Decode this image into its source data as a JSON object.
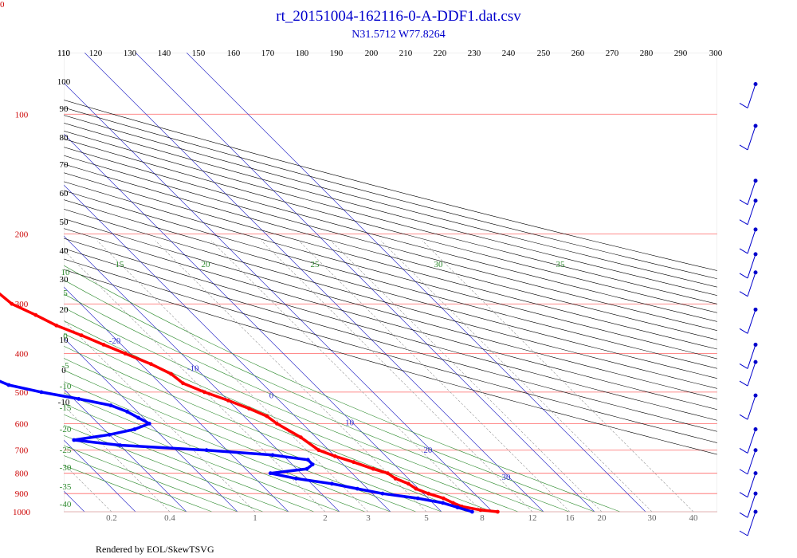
{
  "title": "rt_20151004-162116-0-A-DDF1.dat.csv",
  "subtitle": "N31.5712 W77.8264",
  "corner_label": "0",
  "footer": "Rendered by EOL/SkewTSVG",
  "colors": {
    "temperature": "#ff0000",
    "dewpoint": "#0000ff",
    "isobar": "#ff6666",
    "isotherm": "#3333cc",
    "dry_adiabat": "#000000",
    "moist_adiabat": "#2e8b2e",
    "mixing_ratio": "#999999",
    "wind": "#0000cc"
  },
  "chart_data": {
    "type": "skew-t",
    "title": "rt_20151004-162116-0-A-DDF1.dat.csv",
    "subtitle": "N31.5712 W77.8264",
    "pressure_levels": [
      "100",
      "200",
      "300",
      "400",
      "500",
      "600",
      "700",
      "800",
      "900",
      "1000"
    ],
    "theta_labels": [
      "110",
      "120",
      "130",
      "140",
      "150",
      "160",
      "170",
      "180",
      "190",
      "200",
      "210",
      "220",
      "230",
      "240",
      "250",
      "260",
      "270",
      "280",
      "290",
      "300"
    ],
    "left_labels": [
      "110",
      "100",
      "90",
      "80",
      "70",
      "60",
      "50",
      "40",
      "30",
      "20",
      "10",
      "0",
      "-10"
    ],
    "isotherm_labels": [
      "-110",
      "-100",
      "-90",
      "-80",
      "-70",
      "-60",
      "-50",
      "-40",
      "-30",
      "-20",
      "-10",
      "0",
      "10",
      "20",
      "30"
    ],
    "moist_labels": [
      "15",
      "20",
      "25",
      "30",
      "35"
    ],
    "moist_left_labels": [
      "10",
      "5",
      "0",
      "-5",
      "-10",
      "-15",
      "-20",
      "-25",
      "-30",
      "-35",
      "-40"
    ],
    "mixing_labels": [
      "0.2",
      "0.4",
      "1",
      "2",
      "3",
      "5",
      "8",
      "12",
      "16",
      "20",
      "30",
      "40"
    ],
    "temperature": [
      {
        "p": 1000,
        "t": 21
      },
      {
        "p": 990,
        "t": 18
      },
      {
        "p": 970,
        "t": 15
      },
      {
        "p": 950,
        "t": 14
      },
      {
        "p": 925,
        "t": 13
      },
      {
        "p": 900,
        "t": 11
      },
      {
        "p": 875,
        "t": 9.5
      },
      {
        "p": 850,
        "t": 9
      },
      {
        "p": 825,
        "t": 7.5
      },
      {
        "p": 800,
        "t": 7
      },
      {
        "p": 780,
        "t": 5
      },
      {
        "p": 750,
        "t": 2.5
      },
      {
        "p": 725,
        "t": 0
      },
      {
        "p": 700,
        "t": -2
      },
      {
        "p": 650,
        "t": -3
      },
      {
        "p": 600,
        "t": -5
      },
      {
        "p": 575,
        "t": -5.5
      },
      {
        "p": 550,
        "t": -7.5
      },
      {
        "p": 525,
        "t": -10
      },
      {
        "p": 500,
        "t": -13
      },
      {
        "p": 475,
        "t": -15.5
      },
      {
        "p": 450,
        "t": -16
      },
      {
        "p": 425,
        "t": -18
      },
      {
        "p": 400,
        "t": -21
      },
      {
        "p": 380,
        "t": -23.5
      },
      {
        "p": 360,
        "t": -26
      },
      {
        "p": 340,
        "t": -29
      },
      {
        "p": 320,
        "t": -31
      },
      {
        "p": 300,
        "t": -33.5
      },
      {
        "p": 280,
        "t": -34
      },
      {
        "p": 260,
        "t": -37
      },
      {
        "p": 240,
        "t": -41
      },
      {
        "p": 220,
        "t": -44
      },
      {
        "p": 200,
        "t": -47
      },
      {
        "p": 180,
        "t": -50
      },
      {
        "p": 160,
        "t": -53.5
      },
      {
        "p": 140,
        "t": -58
      },
      {
        "p": 125,
        "t": -62
      },
      {
        "p": 115,
        "t": -64
      },
      {
        "p": 105,
        "t": -63
      },
      {
        "p": 95,
        "t": -64
      },
      {
        "p": 88,
        "t": -63
      },
      {
        "p": 84,
        "t": -63.5
      }
    ],
    "dewpoint": [
      {
        "p": 1000,
        "t": 16
      },
      {
        "p": 975,
        "t": 14
      },
      {
        "p": 950,
        "t": 12
      },
      {
        "p": 925,
        "t": 8
      },
      {
        "p": 900,
        "t": 2
      },
      {
        "p": 875,
        "t": -2
      },
      {
        "p": 850,
        "t": -6
      },
      {
        "p": 825,
        "t": -12
      },
      {
        "p": 800,
        "t": -16
      },
      {
        "p": 780,
        "t": -8
      },
      {
        "p": 760,
        "t": -6
      },
      {
        "p": 740,
        "t": -6
      },
      {
        "p": 720,
        "t": -12
      },
      {
        "p": 700,
        "t": -24
      },
      {
        "p": 680,
        "t": -40
      },
      {
        "p": 660,
        "t": -48
      },
      {
        "p": 640,
        "t": -40
      },
      {
        "p": 620,
        "t": -34
      },
      {
        "p": 600,
        "t": -30
      },
      {
        "p": 580,
        "t": -31
      },
      {
        "p": 560,
        "t": -32
      },
      {
        "p": 540,
        "t": -34
      },
      {
        "p": 520,
        "t": -39
      },
      {
        "p": 500,
        "t": -45
      },
      {
        "p": 480,
        "t": -50
      },
      {
        "p": 460,
        "t": -52
      },
      {
        "p": 440,
        "t": -52
      },
      {
        "p": 420,
        "t": -53
      },
      {
        "p": 400,
        "t": -53
      },
      {
        "p": 380,
        "t": -53
      },
      {
        "p": 360,
        "t": -55
      },
      {
        "p": 340,
        "t": -56
      },
      {
        "p": 320,
        "t": -60
      },
      {
        "p": 300,
        "t": -66
      },
      {
        "p": 280,
        "t": -72
      },
      {
        "p": 260,
        "t": -75
      },
      {
        "p": 250,
        "t": -75.5
      },
      {
        "p": 220,
        "t": -78
      },
      {
        "p": 200,
        "t": -79
      },
      {
        "p": 180,
        "t": -79
      },
      {
        "p": 160,
        "t": -78.5
      },
      {
        "p": 145,
        "t": -78
      },
      {
        "p": 140,
        "t": -78
      }
    ],
    "wind_barbs": [
      {
        "p": 84
      },
      {
        "p": 107
      },
      {
        "p": 147
      },
      {
        "p": 165
      },
      {
        "p": 195
      },
      {
        "p": 225
      },
      {
        "p": 250
      },
      {
        "p": 310
      },
      {
        "p": 380
      },
      {
        "p": 420
      },
      {
        "p": 510
      },
      {
        "p": 620
      },
      {
        "p": 700
      },
      {
        "p": 800
      },
      {
        "p": 900
      },
      {
        "p": 1000
      }
    ]
  }
}
